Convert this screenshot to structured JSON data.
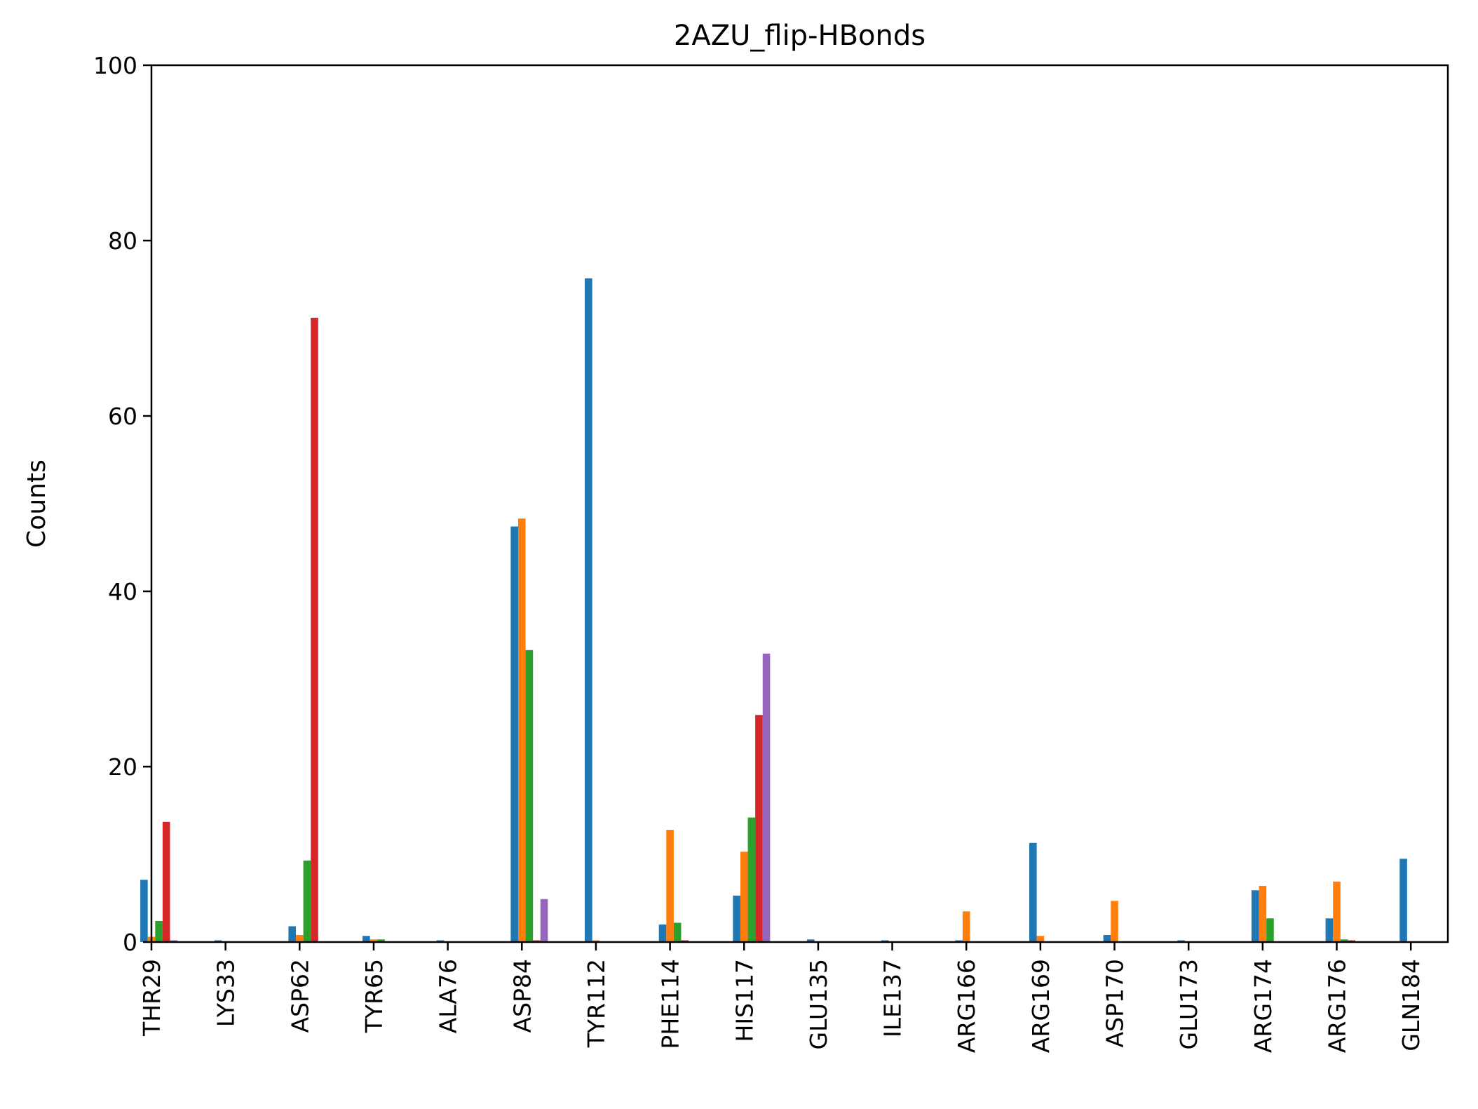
{
  "chart_data": {
    "type": "bar",
    "title": "2AZU_flip-HBonds",
    "xlabel": "",
    "ylabel": "Counts",
    "ylim": [
      0,
      100
    ],
    "yticks": [
      0,
      20,
      40,
      60,
      80,
      100
    ],
    "grid": false,
    "legend": "none",
    "categories": [
      "THR29",
      "LYS33",
      "ASP62",
      "TYR65",
      "ALA76",
      "ASP84",
      "TYR112",
      "PHE114",
      "HIS117",
      "GLU135",
      "ILE137",
      "ARG166",
      "ARG169",
      "ASP170",
      "GLU173",
      "ARG174",
      "ARG176",
      "GLN184"
    ],
    "series": [
      {
        "color": "#1f77b4",
        "values": [
          7.1,
          0.2,
          1.8,
          0.7,
          0.2,
          47.4,
          75.7,
          2.0,
          5.3,
          0.3,
          0.2,
          0.2,
          11.3,
          0.8,
          0.2,
          5.9,
          2.7,
          9.5
        ]
      },
      {
        "color": "#ff7f0e",
        "values": [
          0.6,
          0.1,
          0.8,
          0.3,
          0.0,
          48.3,
          0.2,
          12.8,
          10.3,
          0.0,
          0.0,
          3.5,
          0.7,
          4.7,
          0.0,
          6.4,
          6.9,
          0.0
        ]
      },
      {
        "color": "#2ca02c",
        "values": [
          2.4,
          0.0,
          9.3,
          0.3,
          0.0,
          33.3,
          0.0,
          2.2,
          14.2,
          0.0,
          0.0,
          0.0,
          0.0,
          0.0,
          0.0,
          2.7,
          0.3,
          0.0
        ]
      },
      {
        "color": "#d62728",
        "values": [
          13.7,
          0.0,
          71.2,
          0.0,
          0.0,
          0.2,
          0.0,
          0.2,
          25.9,
          0.0,
          0.0,
          0.0,
          0.0,
          0.0,
          0.0,
          0.0,
          0.2,
          0.0
        ]
      },
      {
        "color": "#9467bd",
        "values": [
          0.2,
          0.0,
          0.0,
          0.0,
          0.0,
          4.9,
          0.0,
          0.0,
          32.9,
          0.0,
          0.0,
          0.0,
          0.0,
          0.0,
          0.0,
          0.0,
          0.0,
          0.0
        ]
      }
    ]
  }
}
